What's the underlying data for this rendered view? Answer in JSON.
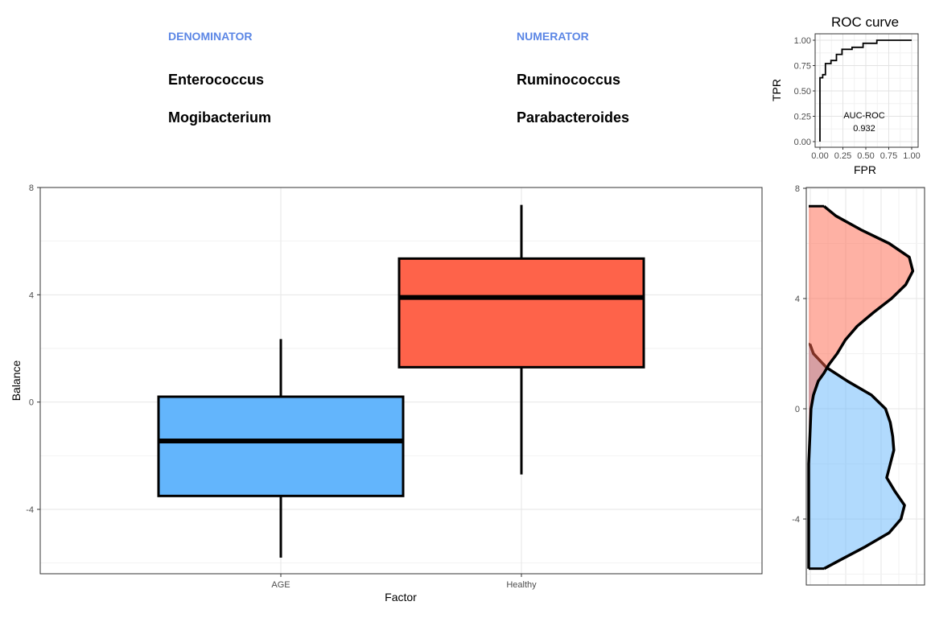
{
  "balance": {
    "denominator_label": "DENOMINATOR",
    "numerator_label": "NUMERATOR",
    "header_color": "#5b86e5",
    "denominator_taxa": [
      "Enterococcus",
      "Mogibacterium"
    ],
    "numerator_taxa": [
      "Ruminococcus",
      "Parabacteroides"
    ]
  },
  "chart_data": [
    {
      "type": "boxplot",
      "xlabel": "Factor",
      "ylabel": "Balance",
      "ylim": [
        -6.4,
        8
      ],
      "yticks": [
        -4,
        0,
        4,
        8
      ],
      "ytick_labels": [
        "-4",
        "0",
        "4",
        "8"
      ],
      "grid": true,
      "categories": [
        "AGE",
        "Healthy"
      ],
      "boxes": [
        {
          "category": "AGE",
          "color": "#63b5fc",
          "whisker_low": -5.8,
          "q1": -3.5,
          "median": -1.45,
          "q3": 0.2,
          "whisker_high": 2.35
        },
        {
          "category": "Healthy",
          "color": "#fe634a",
          "whisker_low": -2.7,
          "q1": 1.3,
          "median": 3.9,
          "q3": 5.35,
          "whisker_high": 7.35
        }
      ]
    },
    {
      "type": "line",
      "title": "ROC curve",
      "xlabel": "FPR",
      "ylabel": "TPR",
      "xlim": [
        0,
        1
      ],
      "ylim": [
        0,
        1
      ],
      "xticks": [
        0,
        0.25,
        0.5,
        0.75,
        1
      ],
      "xtick_labels": [
        "0.00",
        "0.25",
        "0.50",
        "0.75",
        "1.00"
      ],
      "yticks": [
        0,
        0.25,
        0.5,
        0.75,
        1
      ],
      "ytick_labels": [
        "0.00",
        "0.25",
        "0.50",
        "0.75",
        "1.00"
      ],
      "annotation_label": "AUC-ROC",
      "annotation_value": "0.932",
      "grid": true,
      "fpr": [
        0,
        0,
        0.03,
        0.03,
        0.06,
        0.06,
        0.12,
        0.12,
        0.18,
        0.18,
        0.24,
        0.24,
        0.35,
        0.35,
        0.47,
        0.47,
        0.62,
        0.62,
        1.0
      ],
      "tpr": [
        0,
        0.63,
        0.63,
        0.66,
        0.66,
        0.77,
        0.77,
        0.8,
        0.8,
        0.86,
        0.86,
        0.91,
        0.91,
        0.93,
        0.93,
        0.97,
        0.97,
        1.0,
        1.0
      ]
    },
    {
      "type": "density",
      "ylim": [
        -6.4,
        8
      ],
      "yticks": [
        -4,
        0,
        4,
        8
      ],
      "ytick_labels": [
        "-4",
        "0",
        "4",
        "8"
      ],
      "grid": true,
      "series": [
        {
          "color": "#fe634a",
          "y": [
            -5.8,
            -5.0,
            -4.0,
            -3.0,
            -2.0,
            -1.0,
            0.0,
            0.5,
            1.0,
            1.3,
            1.6,
            2.0,
            2.5,
            3.0,
            3.5,
            4.0,
            4.5,
            5.0,
            5.5,
            6.0,
            6.5,
            7.0,
            7.35
          ],
          "density": [
            0.0,
            0.0,
            0.0,
            0.0,
            0.0,
            0.01,
            0.02,
            0.04,
            0.08,
            0.13,
            0.17,
            0.24,
            0.31,
            0.41,
            0.55,
            0.7,
            0.82,
            0.88,
            0.85,
            0.68,
            0.44,
            0.23,
            0.13
          ]
        },
        {
          "color": "#63b5fc",
          "y": [
            -5.8,
            -5.5,
            -5.0,
            -4.5,
            -4.0,
            -3.5,
            -3.0,
            -2.5,
            -2.0,
            -1.5,
            -1.0,
            -0.5,
            0.0,
            0.5,
            1.0,
            1.5,
            2.0,
            2.35
          ],
          "density": [
            0.13,
            0.26,
            0.48,
            0.68,
            0.78,
            0.81,
            0.73,
            0.66,
            0.69,
            0.72,
            0.71,
            0.69,
            0.65,
            0.53,
            0.33,
            0.15,
            0.04,
            0.01
          ]
        }
      ]
    }
  ]
}
